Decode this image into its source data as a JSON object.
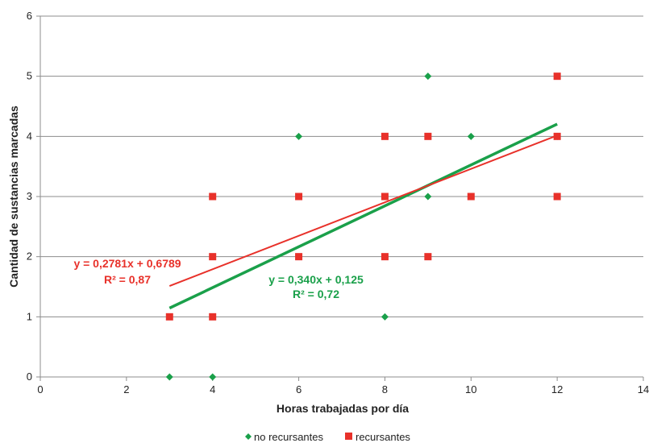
{
  "chart_data": {
    "type": "scatter",
    "title": "",
    "xlabel": "Horas trabajadas por día",
    "ylabel": "Cantidad de sustancias marcadas",
    "xlim": [
      0,
      14
    ],
    "ylim": [
      0,
      6
    ],
    "xticks": [
      0,
      2,
      4,
      6,
      8,
      10,
      12,
      14
    ],
    "yticks": [
      0,
      1,
      2,
      3,
      4,
      5,
      6
    ],
    "grid": "horizontal",
    "legend_position": "bottom",
    "series": [
      {
        "name": "no recursantes",
        "marker": "diamond",
        "color": "#1aa04a",
        "points": [
          [
            3,
            0
          ],
          [
            4,
            0
          ],
          [
            6,
            4
          ],
          [
            8,
            1
          ],
          [
            9,
            5
          ],
          [
            9,
            3
          ],
          [
            10,
            4
          ],
          [
            12,
            4
          ]
        ],
        "trendline": {
          "x_range": [
            3,
            12
          ],
          "slope": 0.34,
          "intercept": 0.125
        },
        "equation": "y = 0,340x + 0,125",
        "r2": "R² = 0,72"
      },
      {
        "name": "recursantes",
        "marker": "square",
        "color": "#e8312a",
        "points": [
          [
            3,
            1
          ],
          [
            4,
            1
          ],
          [
            4,
            2
          ],
          [
            4,
            3
          ],
          [
            6,
            2
          ],
          [
            6,
            3
          ],
          [
            8,
            2
          ],
          [
            8,
            3
          ],
          [
            8,
            4
          ],
          [
            9,
            2
          ],
          [
            9,
            4
          ],
          [
            10,
            3
          ],
          [
            12,
            3
          ],
          [
            12,
            4
          ],
          [
            12,
            5
          ]
        ],
        "trendline": {
          "x_range": [
            3,
            12
          ],
          "slope": 0.2781,
          "intercept": 0.6789
        },
        "equation": "y = 0,2781x + 0,6789",
        "r2": "R² = 0,87"
      }
    ]
  }
}
